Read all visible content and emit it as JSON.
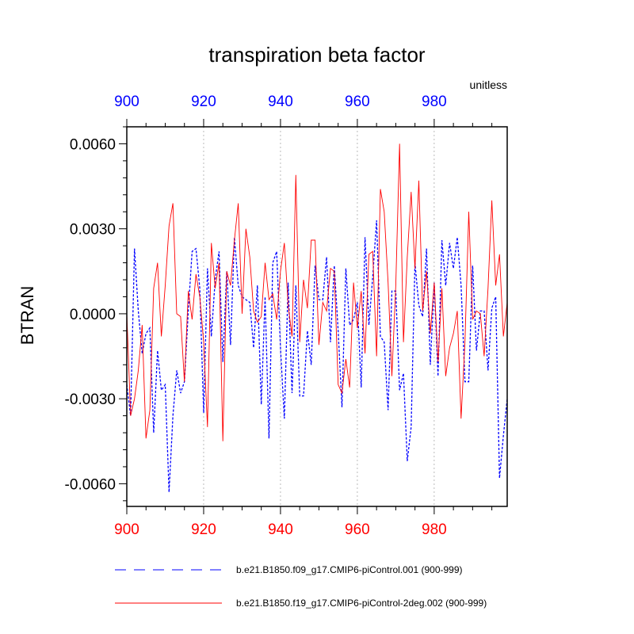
{
  "chart_data": {
    "type": "line",
    "title": "transpiration beta factor",
    "units_label": "unitless",
    "ylabel": "BTRAN",
    "xlabel": "",
    "xlim": [
      900,
      999
    ],
    "ylim": [
      -0.0068,
      0.0066
    ],
    "x_ticks": [
      "900",
      "920",
      "940",
      "960",
      "980"
    ],
    "x_tick_values": [
      900,
      920,
      940,
      960,
      980
    ],
    "y_ticks": [
      "0.0060",
      "0.0030",
      "0.0000",
      "-0.0030",
      "-0.0060"
    ],
    "y_tick_values": [
      0.006,
      0.003,
      0.0,
      -0.003,
      -0.006
    ],
    "top_axis_color": "#0000ff",
    "bottom_axis_color": "#ff0000",
    "grid": "vertical dashed at major x ticks",
    "legend_position": "bottom",
    "x": [
      900,
      901,
      902,
      903,
      904,
      905,
      906,
      907,
      908,
      909,
      910,
      911,
      912,
      913,
      914,
      915,
      916,
      917,
      918,
      919,
      920,
      921,
      922,
      923,
      924,
      925,
      926,
      927,
      928,
      929,
      930,
      931,
      932,
      933,
      934,
      935,
      936,
      937,
      938,
      939,
      940,
      941,
      942,
      943,
      944,
      945,
      946,
      947,
      948,
      949,
      950,
      951,
      952,
      953,
      954,
      955,
      956,
      957,
      958,
      959,
      960,
      961,
      962,
      963,
      964,
      965,
      966,
      967,
      968,
      969,
      970,
      971,
      972,
      973,
      974,
      975,
      976,
      977,
      978,
      979,
      980,
      981,
      982,
      983,
      984,
      985,
      986,
      987,
      988,
      989,
      990,
      991,
      992,
      993,
      994,
      995,
      996,
      997,
      998,
      999
    ],
    "series": [
      {
        "name": "b.e21.B1850.f09_g17.CMIP6-piControl.001 (900-999)",
        "color": "#0000ff",
        "style": "dashed",
        "values": [
          -0.0025,
          -0.0036,
          0.0023,
          0.0001,
          -0.0014,
          -0.0007,
          -0.0005,
          -0.0042,
          -0.0013,
          -0.0027,
          -0.0025,
          -0.0063,
          -0.0036,
          -0.002,
          -0.0028,
          -0.0024,
          0.0001,
          0.0022,
          0.0023,
          0.0009,
          -0.0035,
          0.0016,
          -0.0008,
          0.0012,
          0.0022,
          -0.0017,
          0.0015,
          -0.0011,
          0.0027,
          0.001,
          0.0006,
          0.0005,
          0.0004,
          -0.0012,
          0.001,
          -0.0032,
          0.0006,
          -0.0044,
          0.0018,
          0.0022,
          -0.0012,
          -0.0037,
          0.0011,
          -0.0028,
          0.001,
          -0.0029,
          -0.0029,
          -0.0006,
          -0.0018,
          0.0017,
          0.0005,
          0.0005,
          0.002,
          -0.001,
          0.0017,
          -0.0006,
          -0.0033,
          0.0016,
          -0.0004,
          -0.0002,
          0.0004,
          -0.0026,
          0.0027,
          -0.0004,
          0.0013,
          0.0033,
          -0.0008,
          -0.001,
          -0.0034,
          0.0008,
          0.0008,
          -0.0027,
          -0.0021,
          -0.0052,
          -0.004,
          0.0018,
          0.0003,
          -0.0001,
          0.0023,
          -0.0018,
          0.0011,
          -0.0022,
          0.0026,
          0.001,
          0.0025,
          0.0016,
          0.0027,
          0.001,
          -0.0024,
          -0.0024,
          0.0017,
          -0.0013,
          0.0001,
          0.0001,
          -0.002,
          0.0002,
          0.0006,
          -0.0058,
          -0.0043,
          -0.003
        ]
      },
      {
        "name": "b.e21.B1850.f19_g17.CMIP6-piControl-2deg.002 (900-999)",
        "color": "#ff0000",
        "style": "solid",
        "values": [
          0.0,
          -0.0036,
          -0.003,
          -0.002,
          -0.0004,
          -0.0044,
          -0.0034,
          0.0009,
          0.0018,
          -0.0008,
          0.001,
          0.0031,
          0.0039,
          0.0,
          -0.0001,
          -0.0024,
          0.0008,
          -0.0002,
          0.0014,
          0.0006,
          -0.001,
          -0.004,
          0.0025,
          0.0009,
          0.0018,
          -0.0045,
          0.0015,
          0.001,
          0.0026,
          0.0039,
          0.0,
          0.003,
          0.002,
          0.0001,
          -0.0003,
          -0.0001,
          0.0018,
          0.0005,
          0.0007,
          -0.0002,
          0.0015,
          0.0025,
          0.0003,
          -0.0008,
          0.0049,
          -0.001,
          0.0012,
          0.0002,
          0.0026,
          0.0026,
          -0.0011,
          0.0004,
          0.0001,
          0.0016,
          0.0015,
          -0.0025,
          -0.0028,
          -0.0016,
          -0.0026,
          0.0011,
          -0.0005,
          0.0008,
          -0.0014,
          0.0021,
          0.0022,
          -0.0015,
          0.0044,
          0.0036,
          0.0011,
          -0.0022,
          0.001,
          0.006,
          -0.001,
          0.002,
          0.0043,
          0.0016,
          0.0047,
          0.0001,
          0.0015,
          -0.0007,
          0.0011,
          -0.0017,
          0.0009,
          -0.0022,
          -0.0012,
          -0.0007,
          0.0001,
          -0.0037,
          -0.001,
          0.0036,
          -0.0002,
          0.0001,
          0.0,
          -0.0015,
          0.0009,
          0.004,
          0.001,
          0.0021,
          -0.0008,
          0.0004
        ]
      }
    ]
  }
}
